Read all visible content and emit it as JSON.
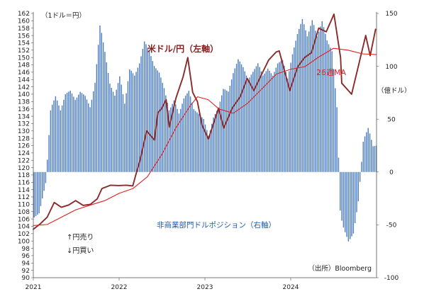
{
  "chart_data": {
    "type": "bar+line",
    "left_unit_label": "（1ドル＝円）",
    "right_unit_label": "（億ドル）",
    "source_label": "（出所）Bloomberg",
    "left_axis": {
      "min": 90,
      "max": 162,
      "step": 2
    },
    "right_axis": {
      "min": -100,
      "max": 150,
      "ticks": [
        -100,
        -50,
        0,
        50,
        100,
        150
      ]
    },
    "x_axis": {
      "start": "2021-01-01",
      "end": "2024-12-31",
      "tick_labels": [
        "2021",
        "2022",
        "2023",
        "2024"
      ]
    },
    "colors": {
      "usdjpy": "#8b2a2a",
      "ma26": "#e02020",
      "bars": "#4f7fc0"
    },
    "series": [
      {
        "name": "米ドル/円（左軸）",
        "axis": "left",
        "kind": "line",
        "points": [
          [
            "2021-01-01",
            103.2
          ],
          [
            "2021-01-29",
            104.6
          ],
          [
            "2021-03-01",
            106.5
          ],
          [
            "2021-03-31",
            110.5
          ],
          [
            "2021-04-30",
            109.2
          ],
          [
            "2021-05-31",
            109.8
          ],
          [
            "2021-06-30",
            111.0
          ],
          [
            "2021-08-01",
            109.7
          ],
          [
            "2021-09-01",
            110.0
          ],
          [
            "2021-09-30",
            111.5
          ],
          [
            "2021-10-20",
            114.3
          ],
          [
            "2021-11-25",
            115.2
          ],
          [
            "2021-12-31",
            115.1
          ],
          [
            "2022-01-31",
            115.2
          ],
          [
            "2022-02-28",
            115.0
          ],
          [
            "2022-03-15",
            118.5
          ],
          [
            "2022-03-31",
            122.0
          ],
          [
            "2022-04-28",
            130.0
          ],
          [
            "2022-05-31",
            127.5
          ],
          [
            "2022-06-15",
            135.0
          ],
          [
            "2022-06-30",
            136.0
          ],
          [
            "2022-07-20",
            138.5
          ],
          [
            "2022-08-02",
            131.0
          ],
          [
            "2022-08-31",
            139.0
          ],
          [
            "2022-09-30",
            144.7
          ],
          [
            "2022-10-20",
            150.0
          ],
          [
            "2022-11-10",
            140.5
          ],
          [
            "2022-11-30",
            138.0
          ],
          [
            "2022-12-20",
            131.5
          ],
          [
            "2023-01-16",
            127.8
          ],
          [
            "2023-02-28",
            136.2
          ],
          [
            "2023-03-22",
            130.8
          ],
          [
            "2023-04-28",
            136.3
          ],
          [
            "2023-05-31",
            139.3
          ],
          [
            "2023-06-30",
            144.3
          ],
          [
            "2023-07-28",
            141.0
          ],
          [
            "2023-08-31",
            145.5
          ],
          [
            "2023-09-29",
            149.3
          ],
          [
            "2023-10-31",
            151.5
          ],
          [
            "2023-11-13",
            151.8
          ],
          [
            "2023-12-28",
            141.0
          ],
          [
            "2024-01-31",
            147.5
          ],
          [
            "2024-02-29",
            150.0
          ],
          [
            "2024-03-29",
            151.3
          ],
          [
            "2024-04-29",
            158.0
          ],
          [
            "2024-05-31",
            157.0
          ],
          [
            "2024-07-03",
            161.8
          ],
          [
            "2024-07-31",
            150.0
          ],
          [
            "2024-08-05",
            143.0
          ],
          [
            "2024-09-16",
            140.0
          ],
          [
            "2024-10-31",
            152.0
          ],
          [
            "2024-11-15",
            156.0
          ],
          [
            "2024-12-04",
            150.5
          ],
          [
            "2024-12-27",
            157.7
          ]
        ]
      },
      {
        "name": "26週MA",
        "axis": "left",
        "kind": "line",
        "points": [
          [
            "2021-01-01",
            104.2
          ],
          [
            "2021-03-01",
            104.5
          ],
          [
            "2021-05-01",
            106.5
          ],
          [
            "2021-07-01",
            108.5
          ],
          [
            "2021-09-01",
            109.8
          ],
          [
            "2021-11-01",
            111.0
          ],
          [
            "2022-01-01",
            113.0
          ],
          [
            "2022-03-01",
            114.3
          ],
          [
            "2022-05-01",
            117.5
          ],
          [
            "2022-07-01",
            123.5
          ],
          [
            "2022-09-01",
            131.0
          ],
          [
            "2022-11-01",
            137.0
          ],
          [
            "2022-12-01",
            139.3
          ],
          [
            "2023-01-15",
            138.5
          ],
          [
            "2023-03-01",
            136.0
          ],
          [
            "2023-05-01",
            134.8
          ],
          [
            "2023-07-01",
            137.5
          ],
          [
            "2023-09-01",
            141.5
          ],
          [
            "2023-11-01",
            145.5
          ],
          [
            "2024-01-01",
            146.8
          ],
          [
            "2024-03-01",
            147.5
          ],
          [
            "2024-05-01",
            150.2
          ],
          [
            "2024-07-01",
            152.5
          ],
          [
            "2024-09-01",
            152.0
          ],
          [
            "2024-11-01",
            151.0
          ],
          [
            "2024-12-31",
            150.8
          ]
        ]
      },
      {
        "name": "非商業部門ドルポジション（右軸）",
        "axis": "right",
        "kind": "bar",
        "points": [
          [
            "2021-01-05",
            -43
          ],
          [
            "2021-01-26",
            -39
          ],
          [
            "2021-02-23",
            -10
          ],
          [
            "2021-03-16",
            60
          ],
          [
            "2021-04-06",
            72
          ],
          [
            "2021-04-27",
            58
          ],
          [
            "2021-05-18",
            74
          ],
          [
            "2021-06-08",
            77
          ],
          [
            "2021-06-29",
            68
          ],
          [
            "2021-07-20",
            76
          ],
          [
            "2021-08-10",
            72
          ],
          [
            "2021-08-31",
            61
          ],
          [
            "2021-09-21",
            85
          ],
          [
            "2021-10-12",
            140
          ],
          [
            "2021-11-02",
            113
          ],
          [
            "2021-11-23",
            83
          ],
          [
            "2021-12-14",
            72
          ],
          [
            "2022-01-04",
            91
          ],
          [
            "2022-01-25",
            64
          ],
          [
            "2022-02-15",
            98
          ],
          [
            "2022-03-08",
            91
          ],
          [
            "2022-03-29",
            103
          ],
          [
            "2022-04-19",
            124
          ],
          [
            "2022-05-10",
            114
          ],
          [
            "2022-05-31",
            100
          ],
          [
            "2022-06-21",
            94
          ],
          [
            "2022-07-12",
            79
          ],
          [
            "2022-08-02",
            58
          ],
          [
            "2022-08-23",
            68
          ],
          [
            "2022-09-13",
            55
          ],
          [
            "2022-10-04",
            70
          ],
          [
            "2022-10-25",
            77
          ],
          [
            "2022-11-15",
            59
          ],
          [
            "2022-12-06",
            55
          ],
          [
            "2022-12-27",
            50
          ],
          [
            "2023-01-17",
            34
          ],
          [
            "2023-02-07",
            52
          ],
          [
            "2023-02-28",
            61
          ],
          [
            "2023-03-21",
            79
          ],
          [
            "2023-04-11",
            76
          ],
          [
            "2023-05-02",
            94
          ],
          [
            "2023-05-23",
            107
          ],
          [
            "2023-06-13",
            99
          ],
          [
            "2023-07-04",
            87
          ],
          [
            "2023-07-25",
            95
          ],
          [
            "2023-08-15",
            103
          ],
          [
            "2023-09-05",
            91
          ],
          [
            "2023-09-26",
            98
          ],
          [
            "2023-10-17",
            91
          ],
          [
            "2023-11-07",
            103
          ],
          [
            "2023-11-28",
            106
          ],
          [
            "2023-12-19",
            88
          ],
          [
            "2024-01-09",
            112
          ],
          [
            "2024-01-30",
            131
          ],
          [
            "2024-02-20",
            145
          ],
          [
            "2024-03-12",
            128
          ],
          [
            "2024-04-02",
            144
          ],
          [
            "2024-04-23",
            128
          ],
          [
            "2024-05-14",
            143
          ],
          [
            "2024-06-04",
            124
          ],
          [
            "2024-06-25",
            114
          ],
          [
            "2024-07-16",
            60
          ],
          [
            "2024-07-30",
            -40
          ],
          [
            "2024-08-13",
            -53
          ],
          [
            "2024-09-03",
            -66
          ],
          [
            "2024-09-24",
            -58
          ],
          [
            "2024-10-15",
            -27
          ],
          [
            "2024-11-05",
            30
          ],
          [
            "2024-11-26",
            42
          ],
          [
            "2024-12-17",
            24
          ],
          [
            "2024-12-27",
            25
          ]
        ]
      }
    ],
    "annotations": [
      {
        "text": "米ドル/円（左軸）",
        "color": "#8b1a1a"
      },
      {
        "text": "26週MA",
        "color": "#e02020"
      },
      {
        "text": "非商業部門ドルポジション（右軸）",
        "color": "#1f5fb0"
      },
      {
        "text": "↑円売り",
        "color": "#222222"
      },
      {
        "text": "↓円買い",
        "color": "#222222"
      }
    ]
  }
}
